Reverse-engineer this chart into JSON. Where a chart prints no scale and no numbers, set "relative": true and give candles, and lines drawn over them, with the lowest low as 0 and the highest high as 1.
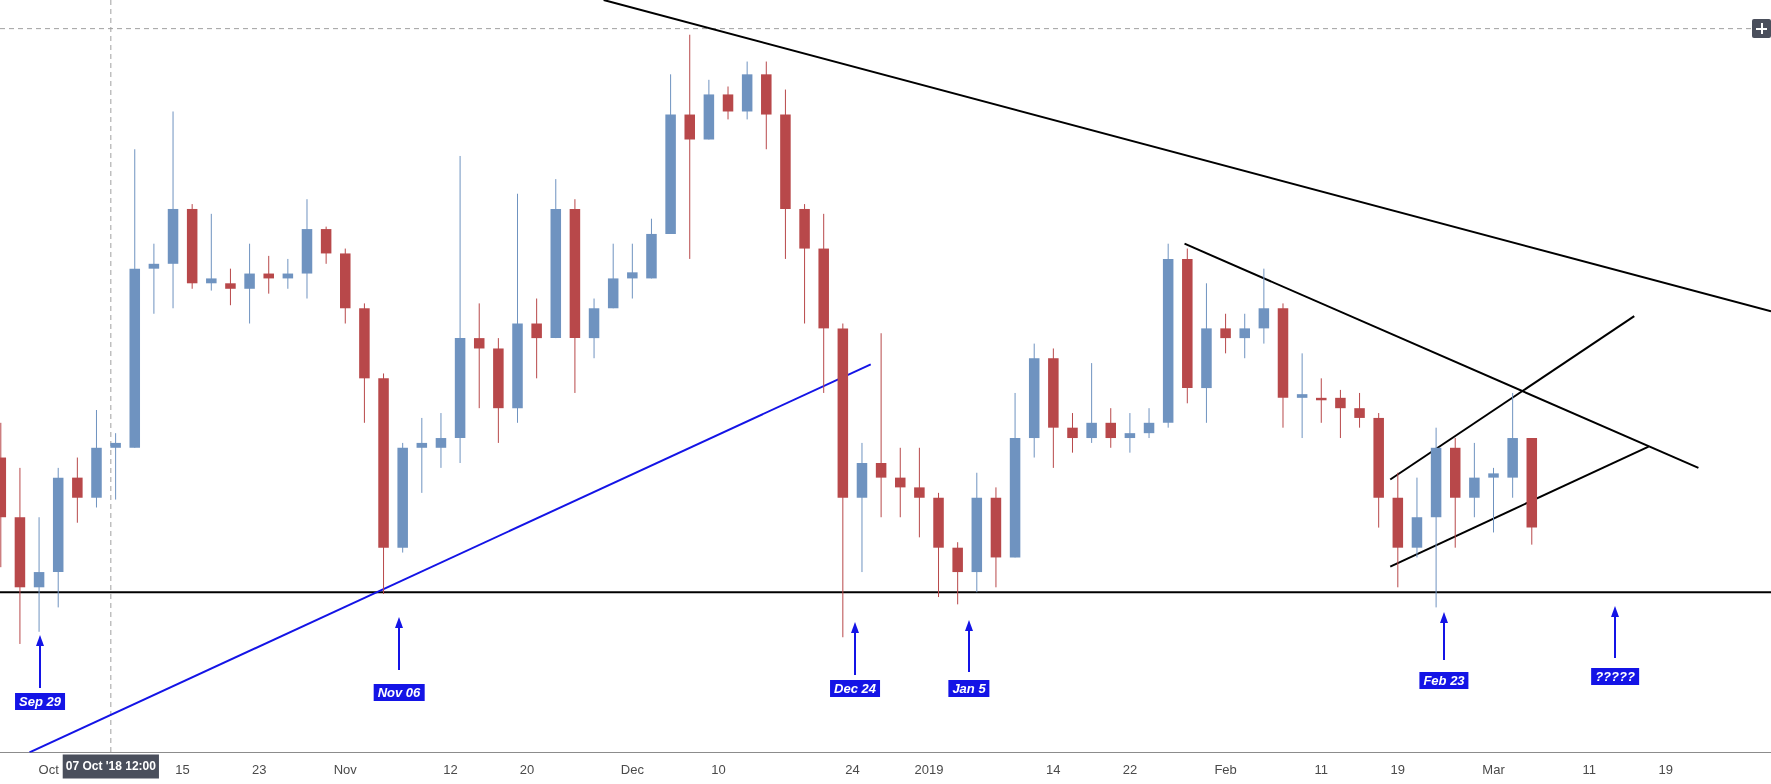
{
  "chart_data": {
    "type": "candlestick",
    "relative": true,
    "colors": [
      "#b8484a",
      "#b8484a",
      "#6f93c0",
      "#6f93c0",
      "#b8484a",
      "#6f93c0",
      "#6f93c0",
      "#6f93c0",
      "#6f93c0",
      "#6f93c0",
      "#b8484a",
      "#6f93c0",
      "#b8484a",
      "#6f93c0",
      "#b8484a",
      "#6f93c0",
      "#6f93c0",
      "#b8484a",
      "#b8484a",
      "#b8484a",
      "#b8484a",
      "#6f93c0",
      "#6f93c0",
      "#6f93c0",
      "#6f93c0",
      "#b8484a",
      "#b8484a",
      "#6f93c0",
      "#b8484a",
      "#6f93c0",
      "#b8484a",
      "#6f93c0",
      "#6f93c0",
      "#6f93c0",
      "#6f93c0",
      "#6f93c0",
      "#b8484a",
      "#6f93c0",
      "#b8484a",
      "#6f93c0",
      "#b8484a",
      "#b8484a",
      "#b8484a",
      "#b8484a",
      "#b8484a",
      "#6f93c0",
      "#b8484a",
      "#b8484a",
      "#b8484a",
      "#b8484a",
      "#b8484a",
      "#6f93c0",
      "#b8484a",
      "#6f93c0",
      "#6f93c0",
      "#b8484a",
      "#b8484a",
      "#6f93c0",
      "#b8484a",
      "#6f93c0",
      "#6f93c0",
      "#6f93c0",
      "#b8484a",
      "#6f93c0",
      "#b8484a",
      "#6f93c0",
      "#6f93c0",
      "#b8484a",
      "#6f93c0",
      "#b8484a",
      "#b8484a",
      "#b8484a",
      "#b8484a",
      "#b8484a",
      "#6f93c0",
      "#6f93c0",
      "#b8484a",
      "#6f93c0",
      "#6f93c0",
      "#6f93c0",
      "#b8484a"
    ],
    "x": [
      "2018-09-26",
      "2018-09-28",
      "2018-09-30",
      "2018-10-02",
      "2018-10-04",
      "2018-10-06",
      "2018-10-08",
      "2018-10-10",
      "2018-10-12",
      "2018-10-14",
      "2018-10-16",
      "2018-10-18",
      "2018-10-20",
      "2018-10-22",
      "2018-10-24",
      "2018-10-26",
      "2018-10-28",
      "2018-10-30",
      "2018-11-01",
      "2018-11-03",
      "2018-11-05",
      "2018-11-07",
      "2018-11-09",
      "2018-11-11",
      "2018-11-13",
      "2018-11-15",
      "2018-11-17",
      "2018-11-19",
      "2018-11-21",
      "2018-11-23",
      "2018-11-25",
      "2018-11-27",
      "2018-11-29",
      "2018-12-01",
      "2018-12-03",
      "2018-12-05",
      "2018-12-07",
      "2018-12-09",
      "2018-12-11",
      "2018-12-13",
      "2018-12-15",
      "2018-12-17",
      "2018-12-19",
      "2018-12-21",
      "2018-12-23",
      "2018-12-25",
      "2018-12-27",
      "2018-12-29",
      "2018-12-31",
      "2019-01-02",
      "2019-01-04",
      "2019-01-06",
      "2019-01-08",
      "2019-01-10",
      "2019-01-12",
      "2019-01-14",
      "2019-01-16",
      "2019-01-18",
      "2019-01-20",
      "2019-01-22",
      "2019-01-24",
      "2019-01-26",
      "2019-01-28",
      "2019-01-30",
      "2019-02-01",
      "2019-02-03",
      "2019-02-05",
      "2019-02-07",
      "2019-02-09",
      "2019-02-11",
      "2019-02-13",
      "2019-02-15",
      "2019-02-17",
      "2019-02-19",
      "2019-02-21",
      "2019-02-23",
      "2019-02-25",
      "2019-02-27",
      "2019-03-01",
      "2019-03-03",
      "2019-03-05"
    ],
    "ohlc": [
      [
        0.306,
        0.363,
        0.126,
        0.208
      ],
      [
        0.208,
        0.289,
        0,
        0.093
      ],
      [
        0.093,
        0.208,
        0.02,
        0.118
      ],
      [
        0.118,
        0.289,
        0.06,
        0.273
      ],
      [
        0.273,
        0.306,
        0.199,
        0.24
      ],
      [
        0.24,
        0.384,
        0.224,
        0.322
      ],
      [
        0.322,
        0.346,
        0.237,
        0.33
      ],
      [
        0.322,
        0.812,
        0.322,
        0.616
      ],
      [
        0.616,
        0.657,
        0.542,
        0.624
      ],
      [
        0.624,
        0.874,
        0.551,
        0.714
      ],
      [
        0.714,
        0.722,
        0.583,
        0.592
      ],
      [
        0.592,
        0.706,
        0.58,
        0.6
      ],
      [
        0.592,
        0.616,
        0.556,
        0.583
      ],
      [
        0.583,
        0.657,
        0.526,
        0.608
      ],
      [
        0.608,
        0.637,
        0.575,
        0.6
      ],
      [
        0.6,
        0.632,
        0.583,
        0.608
      ],
      [
        0.608,
        0.73,
        0.567,
        0.681
      ],
      [
        0.681,
        0.685,
        0.624,
        0.641
      ],
      [
        0.641,
        0.649,
        0.526,
        0.551
      ],
      [
        0.551,
        0.559,
        0.363,
        0.436
      ],
      [
        0.436,
        0.444,
        0.082,
        0.158
      ],
      [
        0.158,
        0.33,
        0.15,
        0.322
      ],
      [
        0.322,
        0.371,
        0.248,
        0.33
      ],
      [
        0.322,
        0.379,
        0.289,
        0.338
      ],
      [
        0.338,
        0.801,
        0.297,
        0.502
      ],
      [
        0.502,
        0.559,
        0.387,
        0.485
      ],
      [
        0.485,
        0.502,
        0.33,
        0.387
      ],
      [
        0.387,
        0.739,
        0.363,
        0.526
      ],
      [
        0.526,
        0.567,
        0.436,
        0.502
      ],
      [
        0.502,
        0.763,
        0.502,
        0.714
      ],
      [
        0.714,
        0.73,
        0.412,
        0.502
      ],
      [
        0.502,
        0.567,
        0.469,
        0.551
      ],
      [
        0.551,
        0.657,
        0.551,
        0.6
      ],
      [
        0.6,
        0.657,
        0.567,
        0.61
      ],
      [
        0.6,
        0.698,
        0.6,
        0.673
      ],
      [
        0.673,
        0.935,
        0.673,
        0.869
      ],
      [
        0.869,
        1,
        0.632,
        0.828
      ],
      [
        0.828,
        0.926,
        0.828,
        0.902
      ],
      [
        0.902,
        0.915,
        0.861,
        0.874
      ],
      [
        0.874,
        0.956,
        0.861,
        0.935
      ],
      [
        0.935,
        0.956,
        0.812,
        0.869
      ],
      [
        0.869,
        0.91,
        0.632,
        0.714
      ],
      [
        0.714,
        0.722,
        0.526,
        0.649
      ],
      [
        0.649,
        0.706,
        0.412,
        0.518
      ],
      [
        0.518,
        0.526,
        0.011,
        0.24
      ],
      [
        0.24,
        0.33,
        0.118,
        0.297
      ],
      [
        0.297,
        0.51,
        0.208,
        0.273
      ],
      [
        0.273,
        0.322,
        0.208,
        0.257
      ],
      [
        0.257,
        0.322,
        0.175,
        0.24
      ],
      [
        0.24,
        0.248,
        0.077,
        0.158
      ],
      [
        0.158,
        0.167,
        0.065,
        0.118
      ],
      [
        0.118,
        0.281,
        0.085,
        0.24
      ],
      [
        0.24,
        0.257,
        0.093,
        0.142
      ],
      [
        0.142,
        0.412,
        0.142,
        0.338
      ],
      [
        0.338,
        0.493,
        0.306,
        0.469
      ],
      [
        0.469,
        0.485,
        0.289,
        0.355
      ],
      [
        0.355,
        0.379,
        0.314,
        0.338
      ],
      [
        0.338,
        0.461,
        0.33,
        0.363
      ],
      [
        0.363,
        0.387,
        0.322,
        0.338
      ],
      [
        0.338,
        0.379,
        0.314,
        0.346
      ],
      [
        0.346,
        0.387,
        0.338,
        0.363
      ],
      [
        0.363,
        0.657,
        0.355,
        0.632
      ],
      [
        0.632,
        0.649,
        0.395,
        0.42
      ],
      [
        0.42,
        0.592,
        0.363,
        0.518
      ],
      [
        0.518,
        0.542,
        0.477,
        0.502
      ],
      [
        0.502,
        0.542,
        0.469,
        0.518
      ],
      [
        0.518,
        0.616,
        0.493,
        0.551
      ],
      [
        0.551,
        0.559,
        0.355,
        0.404
      ],
      [
        0.404,
        0.477,
        0.338,
        0.41
      ],
      [
        0.404,
        0.436,
        0.363,
        0.4
      ],
      [
        0.404,
        0.417,
        0.338,
        0.387
      ],
      [
        0.387,
        0.412,
        0.355,
        0.371
      ],
      [
        0.371,
        0.379,
        0.191,
        0.24
      ],
      [
        0.24,
        0.281,
        0.093,
        0.158
      ],
      [
        0.158,
        0.273,
        0.142,
        0.208
      ],
      [
        0.208,
        0.355,
        0.06,
        0.322
      ],
      [
        0.322,
        0.338,
        0.158,
        0.24
      ],
      [
        0.24,
        0.33,
        0.208,
        0.273
      ],
      [
        0.273,
        0.289,
        0.183,
        0.28
      ],
      [
        0.273,
        0.412,
        0.24,
        0.338
      ],
      [
        0.338,
        0.338,
        0.163,
        0.191
      ]
    ],
    "series": [
      {
        "type": "line",
        "color": "#1414e6",
        "x": [
          "2018-09-29",
          "2018-12-25T22:00"
        ],
        "values": [
          -0.178,
          0.459
        ]
      },
      {
        "type": "line",
        "color": "#000000",
        "x": [
          "2018-11-28",
          "2019-03-30"
        ],
        "values": [
          1.057,
          0.546
        ]
      },
      {
        "type": "line",
        "color": "#000000",
        "x": [
          "2019-01-27T17:00",
          "2019-03-22T10:00"
        ],
        "values": [
          0.657,
          0.289
        ]
      },
      {
        "type": "line",
        "color": "#000000",
        "x": [
          "2019-02-18T05:00",
          "2019-03-15T17:00"
        ],
        "values": [
          0.27,
          0.538
        ]
      },
      {
        "type": "line",
        "color": "#000000",
        "x": [
          "2019-02-18T05:00",
          "2019-03-17T05:00"
        ],
        "values": [
          0.127,
          0.324
        ]
      }
    ],
    "xlim": [
      "2018-09-25T22:00",
      "2019-03-30"
    ],
    "xticks": [
      {
        "value": "2018-10-01",
        "label": "Oct"
      },
      {
        "value": "2018-10-15",
        "label": "15"
      },
      {
        "value": "2018-10-23",
        "label": "23"
      },
      {
        "value": "2018-11-01",
        "label": "Nov"
      },
      {
        "value": "2018-11-12",
        "label": "12"
      },
      {
        "value": "2018-11-20",
        "label": "20"
      },
      {
        "value": "2018-12-01",
        "label": "Dec"
      },
      {
        "value": "2018-12-10",
        "label": "10"
      },
      {
        "value": "2018-12-24",
        "label": "24"
      },
      {
        "value": "2019-01-01",
        "label": "2019"
      },
      {
        "value": "2019-01-14",
        "label": "14"
      },
      {
        "value": "2019-01-22",
        "label": "22"
      },
      {
        "value": "2019-02-01",
        "label": "Feb"
      },
      {
        "value": "2019-02-11",
        "label": "11"
      },
      {
        "value": "2019-02-19",
        "label": "19"
      },
      {
        "value": "2019-03-01",
        "label": "Mar"
      },
      {
        "value": "2019-03-11",
        "label": "11"
      },
      {
        "value": "2019-03-19",
        "label": "19"
      }
    ],
    "ref_lines": [
      {
        "axis": "y",
        "value": 0.085,
        "color": "#000000",
        "line_style": "solid"
      },
      {
        "axis": "y",
        "value": 1.01,
        "color": "#a0a0a0",
        "line_style": "dashed"
      },
      {
        "axis": "x",
        "value": "2018-10-07T12:00",
        "label": "07 Oct '18 12:00",
        "color": "#a0a0a0",
        "line_style": "dashed"
      }
    ],
    "annotations": [
      "Sep 29",
      "Nov 06",
      "Dec 24",
      "Jan 5",
      "Feb 23",
      "?????"
    ],
    "legend": false
  }
}
